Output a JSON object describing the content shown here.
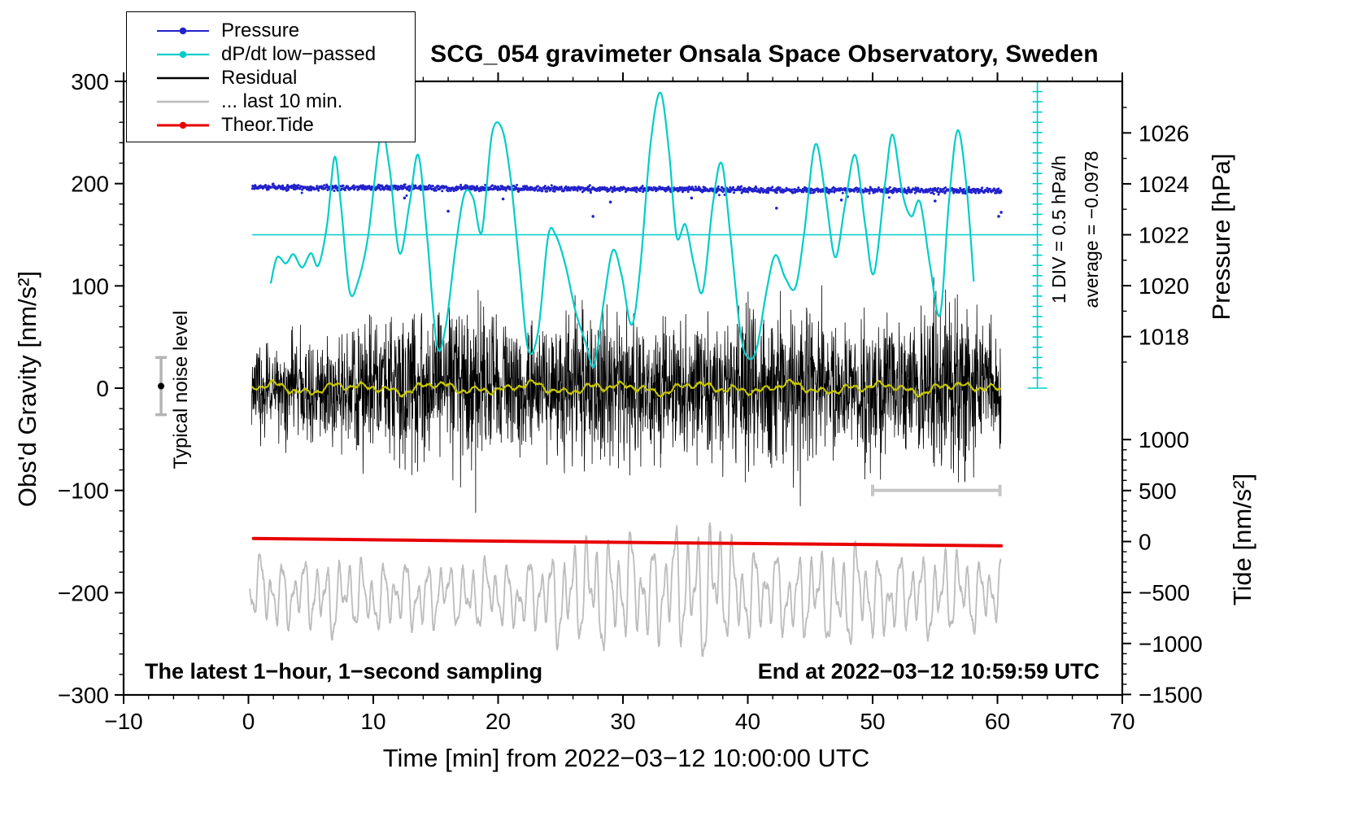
{
  "chart_data": {
    "type": "line",
    "title": "SCG_054 gravimeter Onsala Space Observatory, Sweden",
    "xlabel": "Time [min] from 2022−03−12 10:00:00 UTC",
    "ylabel_left": "Obs'd Gravity [nm/s²]",
    "xlim": [
      -10,
      70
    ],
    "ylim_left": [
      -300,
      300
    ],
    "x_major_step": 10,
    "x_minor_step": 2,
    "y_major_step": 100,
    "y_minor_step": 20,
    "grid": false,
    "right_axes": {
      "pressure": {
        "label": "Pressure [hPa]",
        "majors": [
          1018,
          1020,
          1022,
          1024,
          1026
        ],
        "minor_step": 1,
        "minor_range": [
          1017,
          1027
        ],
        "ref_value": 1022,
        "ref_gravity": 150,
        "gravity_per_unit": 24.9
      },
      "tide": {
        "label": "Tide [nm/s²]",
        "majors": [
          -1500,
          -1000,
          -500,
          0,
          500,
          1000
        ],
        "minor_step": 100,
        "minor_range": [
          -1500,
          1000
        ],
        "ref_value": 0,
        "ref_gravity": -150,
        "gravity_per_unit": 0.0997
      }
    },
    "legend": [
      {
        "label": "Pressure",
        "color": "#2222cc",
        "marker": "line-dot",
        "width": 2
      },
      {
        "label": "dP/dt low−passed",
        "color": "#00cdc8",
        "marker": "line-dot",
        "width": 2.2
      },
      {
        "label": "Residual",
        "color": "#000000",
        "marker": "line",
        "width": 2.6
      },
      {
        "label": "... last 10 min.",
        "color": "#bcbcbc",
        "marker": "line",
        "width": 2.6
      },
      {
        "label": "Theor.Tide",
        "color": "#e80000",
        "marker": "line-dot",
        "width": 3
      }
    ],
    "annotations": {
      "div_scale": "1 DIV = 0.5 hPa/h",
      "average": "average = −0.0978",
      "noise_level": "Typical noise level",
      "sampling": "The latest 1−hour, 1−second sampling",
      "end_time": "End at 2022−03−12 10:59:59 UTC"
    },
    "series": [
      {
        "name": "... last 10 min.",
        "type": "oscillation",
        "color": "#bcbcbc",
        "x0": 0.1,
        "x1": 60.3,
        "step": 0.02,
        "width": 1.8,
        "center": [
          [
            0,
            -198
          ],
          [
            8,
            -205
          ],
          [
            16,
            -202
          ],
          [
            24,
            -204
          ],
          [
            30,
            -198
          ],
          [
            37,
            -196
          ],
          [
            45,
            -205
          ],
          [
            52,
            -203
          ],
          [
            60.3,
            -200
          ]
        ],
        "envelope": [
          [
            0,
            35
          ],
          [
            2,
            45
          ],
          [
            4,
            38
          ],
          [
            6,
            48
          ],
          [
            8,
            45
          ],
          [
            10,
            42
          ],
          [
            12,
            38
          ],
          [
            14,
            45
          ],
          [
            16,
            35
          ],
          [
            18,
            45
          ],
          [
            20,
            40
          ],
          [
            22,
            38
          ],
          [
            24,
            55
          ],
          [
            26,
            62
          ],
          [
            28,
            72
          ],
          [
            30,
            68
          ],
          [
            32,
            58
          ],
          [
            34,
            72
          ],
          [
            36,
            82
          ],
          [
            37.5,
            88
          ],
          [
            39,
            58
          ],
          [
            41,
            52
          ],
          [
            43,
            48
          ],
          [
            45,
            55
          ],
          [
            47,
            58
          ],
          [
            48,
            68
          ],
          [
            50,
            52
          ],
          [
            52,
            45
          ],
          [
            54,
            50
          ],
          [
            56,
            55
          ],
          [
            58,
            45
          ],
          [
            60.3,
            40
          ]
        ],
        "components": [
          [
            0.9,
            0.5,
            1.3
          ],
          [
            1.65,
            0.3,
            4.0
          ],
          [
            0.43,
            0.2,
            2.2
          ],
          [
            3.7,
            0.1,
            0.0
          ]
        ],
        "jitter": 5
      },
      {
        "name": "Theor.Tide",
        "type": "smooth",
        "color": "#e80000",
        "width": 4,
        "points": [
          [
            0.4,
            -147
          ],
          [
            10,
            -148.3
          ],
          [
            20,
            -149.6
          ],
          [
            30,
            -150.8
          ],
          [
            40,
            -151.9
          ],
          [
            50,
            -153
          ],
          [
            60.3,
            -154.2
          ]
        ]
      },
      {
        "name": "Residual",
        "type": "noise-band",
        "color": "#000000",
        "x0": 0.25,
        "x1": 60.3,
        "step": 0.022,
        "stroke": 0.8,
        "center": 0,
        "envelope": [
          [
            0,
            34
          ],
          [
            3,
            38
          ],
          [
            6,
            45
          ],
          [
            9,
            50
          ],
          [
            12,
            60
          ],
          [
            14,
            55
          ],
          [
            16,
            62
          ],
          [
            18,
            75
          ],
          [
            19,
            60
          ],
          [
            21,
            50
          ],
          [
            23,
            48
          ],
          [
            25,
            52
          ],
          [
            27,
            60
          ],
          [
            29,
            65
          ],
          [
            31,
            52
          ],
          [
            33,
            55
          ],
          [
            35,
            50
          ],
          [
            37,
            58
          ],
          [
            39,
            62
          ],
          [
            41,
            68
          ],
          [
            43,
            72
          ],
          [
            45,
            62
          ],
          [
            47,
            52
          ],
          [
            49,
            50
          ],
          [
            51,
            55
          ],
          [
            53,
            58
          ],
          [
            55,
            68
          ],
          [
            57,
            72
          ],
          [
            59,
            55
          ],
          [
            60.3,
            45
          ]
        ],
        "spikes": [
          [
            9.7,
            72
          ],
          [
            13.1,
            -85
          ],
          [
            18.2,
            -122
          ],
          [
            18.4,
            96
          ],
          [
            23.9,
            -75
          ],
          [
            28.4,
            80
          ],
          [
            33.4,
            70
          ],
          [
            39.8,
            -92
          ],
          [
            42.6,
            95
          ],
          [
            44.2,
            -95
          ],
          [
            56.6,
            88
          ],
          [
            57.4,
            -90
          ]
        ]
      },
      {
        "name": "Residual low-passed",
        "type": "smooth-noise",
        "color": "#c8c800",
        "x0": 0.3,
        "x1": 60.3,
        "step": 0.05,
        "width": 2,
        "base": 0,
        "components": [
          [
            7,
            3.2,
            0.5
          ],
          [
            2.3,
            2.4,
            2.0
          ],
          [
            0.9,
            1.8,
            1.0
          ],
          [
            4.1,
            1.5,
            4.2
          ]
        ],
        "jitter": 1.5
      },
      {
        "name": "Pressure",
        "type": "scatter-noise",
        "color": "#2222cc",
        "x0": 0.3,
        "x1": 60.3,
        "n": 1500,
        "trend": [
          [
            0,
            196.5
          ],
          [
            20,
            195.5
          ],
          [
            40,
            194
          ],
          [
            60,
            193
          ]
        ],
        "jitter": 2.0,
        "dot_radius": 1.5,
        "outliers": [
          [
            12.5,
            186
          ],
          [
            16,
            173
          ],
          [
            20.4,
            185
          ],
          [
            27.6,
            168
          ],
          [
            29,
            182
          ],
          [
            35.5,
            186
          ],
          [
            42.3,
            176
          ],
          [
            47.5,
            184
          ],
          [
            55,
            183
          ],
          [
            60.1,
            168
          ],
          [
            60.3,
            172
          ]
        ]
      },
      {
        "name": "dP/dt low-passed",
        "type": "smooth",
        "color": "#00cdc8",
        "width": 2.2,
        "points": [
          [
            1.8,
            103
          ],
          [
            2.3,
            128
          ],
          [
            3,
            122
          ],
          [
            3.6,
            131
          ],
          [
            4.3,
            118
          ],
          [
            5,
            132
          ],
          [
            5.6,
            120
          ],
          [
            6.3,
            160
          ],
          [
            6.9,
            226
          ],
          [
            7.4,
            180
          ],
          [
            8.1,
            95
          ],
          [
            8.8,
            105
          ],
          [
            9.6,
            150
          ],
          [
            10.6,
            248
          ],
          [
            11.3,
            215
          ],
          [
            12.1,
            132
          ],
          [
            12.9,
            180
          ],
          [
            13.6,
            228
          ],
          [
            14.3,
            150
          ],
          [
            15.1,
            42
          ],
          [
            15.8,
            60
          ],
          [
            16.6,
            138
          ],
          [
            17.3,
            190
          ],
          [
            18,
            186
          ],
          [
            18.7,
            153
          ],
          [
            19.5,
            248
          ],
          [
            20.3,
            254
          ],
          [
            21,
            205
          ],
          [
            21.7,
            120
          ],
          [
            22.4,
            38
          ],
          [
            23.2,
            55
          ],
          [
            24,
            148
          ],
          [
            24.6,
            150
          ],
          [
            25.4,
            120
          ],
          [
            26.2,
            75
          ],
          [
            27,
            45
          ],
          [
            27.7,
            22
          ],
          [
            28.5,
            88
          ],
          [
            29.2,
            135
          ],
          [
            29.9,
            110
          ],
          [
            30.7,
            62
          ],
          [
            31.4,
            120
          ],
          [
            32.2,
            238
          ],
          [
            33,
            289
          ],
          [
            33.7,
            230
          ],
          [
            34.3,
            148
          ],
          [
            35,
            160
          ],
          [
            35.7,
            120
          ],
          [
            36.4,
            95
          ],
          [
            37.2,
            180
          ],
          [
            37.9,
            220
          ],
          [
            38.6,
            150
          ],
          [
            39.4,
            55
          ],
          [
            40,
            30
          ],
          [
            40.7,
            38
          ],
          [
            41.5,
            95
          ],
          [
            42.2,
            130
          ],
          [
            43,
            108
          ],
          [
            43.8,
            98
          ],
          [
            44.5,
            150
          ],
          [
            45.4,
            238
          ],
          [
            46.2,
            190
          ],
          [
            47,
            128
          ],
          [
            47.8,
            180
          ],
          [
            48.6,
            228
          ],
          [
            49.4,
            160
          ],
          [
            50.1,
            112
          ],
          [
            51,
            200
          ],
          [
            51.6,
            248
          ],
          [
            52.4,
            190
          ],
          [
            53.1,
            168
          ],
          [
            53.8,
            182
          ],
          [
            54.6,
            120
          ],
          [
            55.4,
            72
          ],
          [
            56.1,
            180
          ],
          [
            56.8,
            252
          ],
          [
            57.5,
            200
          ],
          [
            58.1,
            105
          ]
        ]
      }
    ],
    "decorations": {
      "avg_line": {
        "color": "#00cdc8",
        "y": 150,
        "x0": 0.3,
        "x1": 63.2,
        "width": 1.6
      },
      "scale_bar": {
        "color": "#00cdc8",
        "x": 63.2,
        "y0": 0,
        "y1": 300,
        "div": 10,
        "tick_half": 6,
        "end_half": 12,
        "width": 1.6
      },
      "last10_bar": {
        "color": "#c6c6c6",
        "y": -100,
        "x0": 50,
        "x1": 60.2,
        "cap_half": 7,
        "width": 4
      },
      "noise_marker": {
        "x": -7,
        "dot_y": 2,
        "dot_radius": 4,
        "dot_color": "#000000",
        "bar_lo": -26,
        "bar_hi": 30,
        "cap_half": 7,
        "bar_color": "#b5b5b5",
        "bar_width": 3.5
      }
    }
  }
}
